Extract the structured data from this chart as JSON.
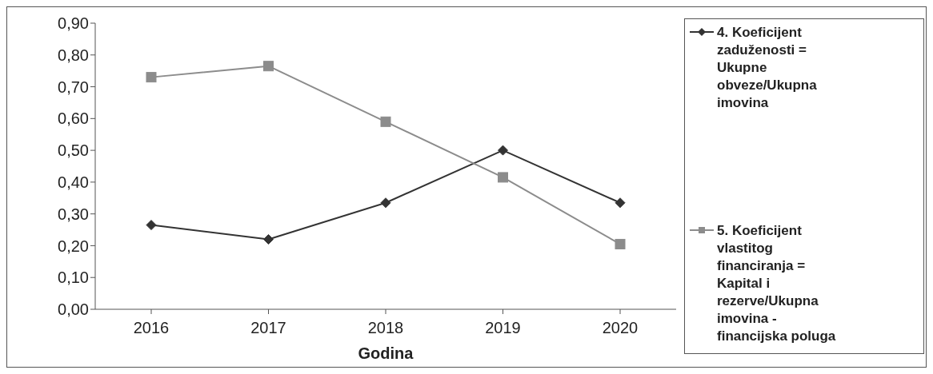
{
  "chart_data": {
    "type": "line",
    "xlabel": "Godina",
    "categories": [
      "2016",
      "2017",
      "2018",
      "2019",
      "2020"
    ],
    "series": [
      {
        "name": "4. Koeficijent zaduženosti = Ukupne obveze/Ukupna imovina",
        "color": "#333333",
        "marker": "diamond",
        "values": [
          0.265,
          0.22,
          0.335,
          0.5,
          0.335
        ]
      },
      {
        "name": "5. Koeficijent vlastitog financiranja = Kapital i rezerve/Ukupna imovina - financijska poluga",
        "color": "#8c8c8c",
        "marker": "square",
        "values": [
          0.73,
          0.765,
          0.59,
          0.415,
          0.205
        ]
      }
    ],
    "ylim": [
      0,
      0.9
    ],
    "yticks": [
      {
        "value": 0,
        "label": "0,00"
      },
      {
        "value": 0.1,
        "label": "0,10"
      },
      {
        "value": 0.2,
        "label": "0,20"
      },
      {
        "value": 0.3,
        "label": "0,30"
      },
      {
        "value": 0.4,
        "label": "0,40"
      },
      {
        "value": 0.5,
        "label": "0,50"
      },
      {
        "value": 0.6,
        "label": "0,60"
      },
      {
        "value": 0.7,
        "label": "0,70"
      },
      {
        "value": 0.8,
        "label": "0,80"
      },
      {
        "value": 0.9,
        "label": "0,90"
      }
    ],
    "grid": false,
    "legend": "right",
    "line_style": "solid"
  }
}
